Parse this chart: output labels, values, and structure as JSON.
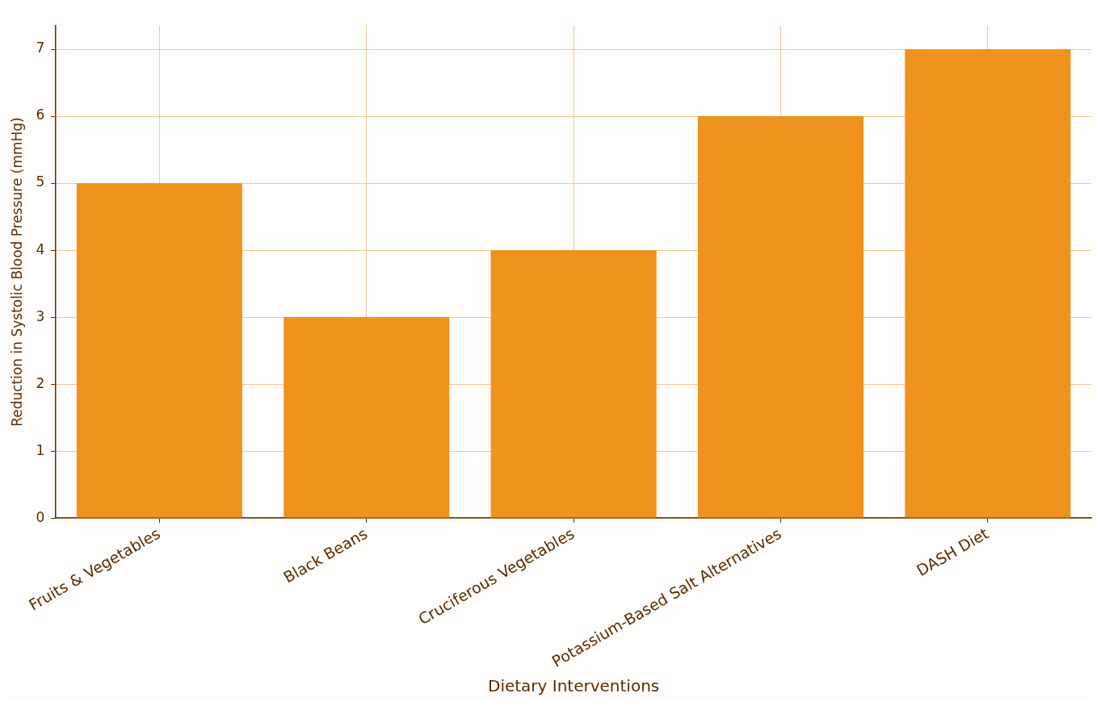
{
  "chart_data": {
    "type": "bar",
    "xlabel": "Dietary Interventions",
    "ylabel": "Reduction in Systolic Blood Pressure (mmHg)",
    "categories": [
      "Fruits & Vegetables",
      "Black Beans",
      "Cruciferous Vegetables",
      "Potassium-Based Salt Alternatives",
      "DASH Diet"
    ],
    "values": [
      5,
      3,
      4,
      6,
      7
    ],
    "color": "#f0921e",
    "ylim": [
      0,
      7.35
    ],
    "yticks": [
      0,
      1,
      2,
      3,
      4,
      5,
      6,
      7
    ],
    "grid": true,
    "legend": false
  }
}
